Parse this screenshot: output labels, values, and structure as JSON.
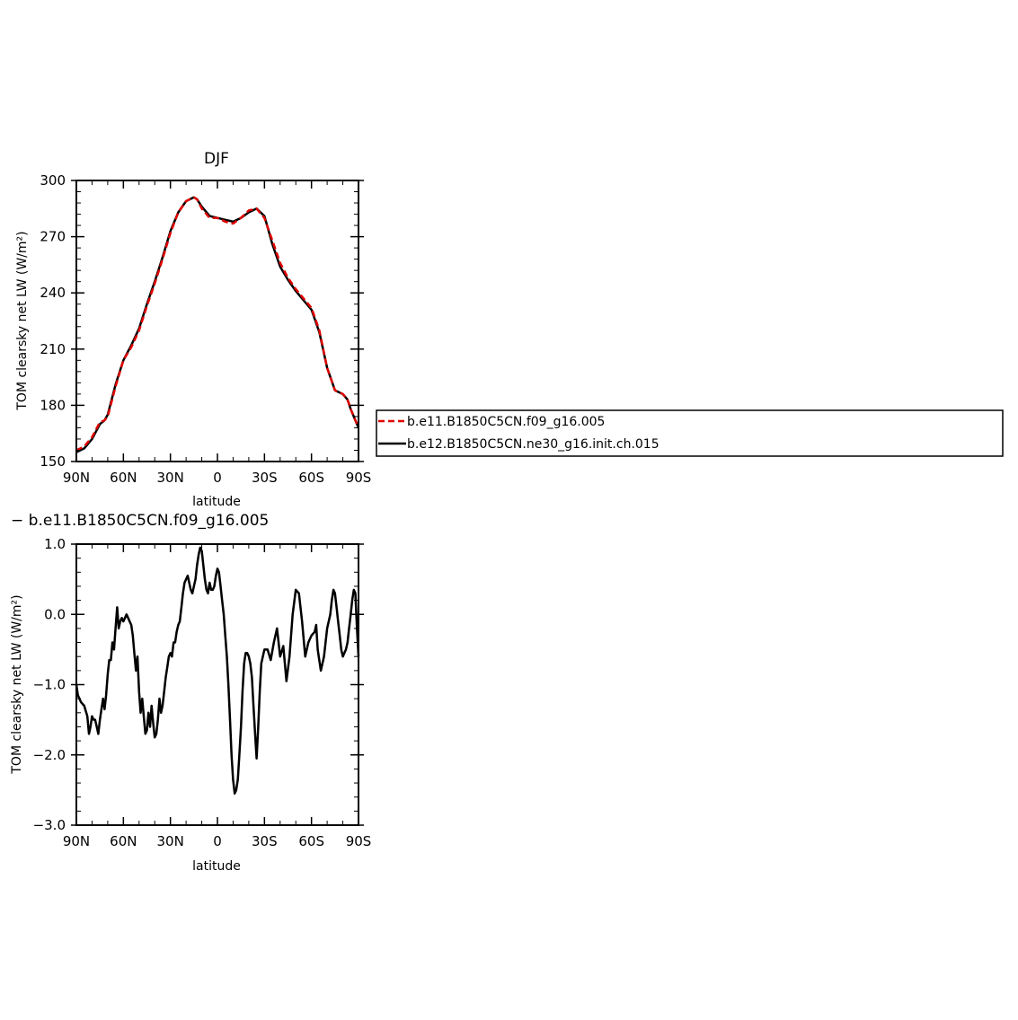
{
  "chart_data": [
    {
      "type": "line",
      "title": "DJF",
      "xlabel": "latitude",
      "ylabel": "TOM clearsky net LW (W/m²)",
      "xlim": [
        90,
        -90
      ],
      "ylim": [
        150,
        300
      ],
      "x_ticks": [
        {
          "value": 90,
          "label": "90N"
        },
        {
          "value": 60,
          "label": "60N"
        },
        {
          "value": 30,
          "label": "30N"
        },
        {
          "value": 0,
          "label": "0"
        },
        {
          "value": -30,
          "label": "30S"
        },
        {
          "value": -60,
          "label": "60S"
        },
        {
          "value": -90,
          "label": "90S"
        }
      ],
      "y_ticks": [
        150,
        180,
        210,
        240,
        270,
        300
      ],
      "y_tick_labels": [
        "150",
        "180",
        "210",
        "240",
        "270",
        "300"
      ],
      "legend": "right",
      "series": [
        {
          "name": "b.e11.B1850C5CN.f09_g16.005",
          "color": "#e00000",
          "dash": true,
          "x": [
            90,
            85,
            80,
            75,
            72,
            70,
            65,
            60,
            55,
            50,
            45,
            40,
            35,
            30,
            25,
            20,
            15,
            13,
            10,
            5,
            0,
            -5,
            -10,
            -15,
            -20,
            -25,
            -30,
            -35,
            -40,
            -45,
            -50,
            -55,
            -60,
            -65,
            -70,
            -75,
            -80,
            -83,
            -85,
            -88,
            -90
          ],
          "y": [
            156,
            158,
            163,
            171,
            172,
            174,
            190,
            204,
            211,
            220,
            233,
            245,
            258,
            272,
            283,
            289,
            291,
            290,
            285,
            280,
            280,
            278,
            277,
            280,
            284,
            285,
            280,
            268,
            256,
            248,
            242,
            237,
            232,
            220,
            200,
            188,
            186,
            183,
            178,
            172,
            168
          ]
        },
        {
          "name": "b.e12.B1850C5CN.ne30_g16.init.ch.015",
          "color": "#000000",
          "dash": false,
          "x": [
            90,
            85,
            80,
            75,
            72,
            70,
            65,
            60,
            55,
            50,
            45,
            40,
            35,
            30,
            25,
            20,
            15,
            13,
            10,
            5,
            0,
            -5,
            -10,
            -15,
            -20,
            -25,
            -30,
            -35,
            -40,
            -45,
            -50,
            -55,
            -60,
            -65,
            -70,
            -75,
            -80,
            -83,
            -85,
            -88,
            -90
          ],
          "y": [
            155,
            157,
            162,
            170,
            172,
            175,
            191,
            204,
            212,
            221,
            234,
            246,
            259,
            273,
            283,
            289,
            291,
            290,
            286,
            281,
            280,
            279,
            278,
            280,
            283,
            285,
            281,
            266,
            254,
            247,
            241,
            236,
            231,
            219,
            200,
            188,
            186,
            183,
            178,
            172,
            168
          ]
        }
      ]
    },
    {
      "type": "line",
      "title": "− b.e11.B1850C5CN.f09_g16.005",
      "xlabel": "latitude",
      "ylabel": "TOM clearsky net LW (W/m²)",
      "xlim": [
        90,
        -90
      ],
      "ylim": [
        -3.0,
        1.0
      ],
      "x_ticks": [
        {
          "value": 90,
          "label": "90N"
        },
        {
          "value": 60,
          "label": "60N"
        },
        {
          "value": 30,
          "label": "30N"
        },
        {
          "value": 0,
          "label": "0"
        },
        {
          "value": -30,
          "label": "30S"
        },
        {
          "value": -60,
          "label": "60S"
        },
        {
          "value": -90,
          "label": "90S"
        }
      ],
      "y_ticks": [
        -3.0,
        -2.0,
        -1.0,
        0.0,
        1.0
      ],
      "y_tick_labels": [
        "−3.0",
        "−2.0",
        "−1.0",
        "0.0",
        "1.0"
      ],
      "series": [
        {
          "color": "#000000",
          "dash": false,
          "x": [
            90,
            89,
            87,
            85,
            83,
            82,
            81,
            80,
            79,
            78,
            77,
            76,
            75,
            74,
            73,
            72,
            71,
            70,
            69,
            68,
            67,
            66,
            65,
            64,
            63,
            62,
            61,
            60,
            59,
            58,
            57,
            56,
            55,
            54,
            53,
            52,
            51,
            50,
            49,
            48,
            47,
            46,
            45,
            44,
            43,
            42,
            41,
            40,
            39,
            38,
            37,
            36,
            35,
            34,
            33,
            32,
            31,
            30,
            29,
            28,
            27,
            26,
            25,
            24,
            23,
            22,
            21,
            20,
            19,
            18,
            17,
            16,
            15,
            14,
            13,
            12,
            11,
            10,
            9,
            8,
            7,
            6,
            5,
            4,
            3,
            2,
            1,
            0,
            -1,
            -2,
            -3,
            -4,
            -5,
            -6,
            -7,
            -8,
            -9,
            -10,
            -11,
            -12,
            -13,
            -14,
            -15,
            -16,
            -17,
            -18,
            -19,
            -20,
            -21,
            -22,
            -23,
            -24,
            -25,
            -26,
            -27,
            -28,
            -30,
            -32,
            -34,
            -36,
            -38,
            -40,
            -42,
            -44,
            -46,
            -48,
            -50,
            -52,
            -54,
            -56,
            -58,
            -60,
            -62,
            -63,
            -64,
            -66,
            -68,
            -70,
            -72,
            -73,
            -74,
            -75,
            -76,
            -77,
            -78,
            -79,
            -80,
            -81,
            -82,
            -83,
            -84,
            -85,
            -86,
            -87,
            -88,
            -89,
            -90
          ],
          "y": [
            -1.0,
            -1.15,
            -1.25,
            -1.3,
            -1.45,
            -1.7,
            -1.6,
            -1.45,
            -1.5,
            -1.5,
            -1.6,
            -1.7,
            -1.5,
            -1.35,
            -1.2,
            -1.35,
            -1.15,
            -0.85,
            -0.65,
            -0.65,
            -0.4,
            -0.5,
            -0.2,
            0.1,
            -0.2,
            -0.1,
            -0.05,
            -0.1,
            -0.05,
            0.0,
            -0.05,
            -0.1,
            -0.15,
            -0.3,
            -0.55,
            -0.8,
            -0.6,
            -1.1,
            -1.4,
            -1.2,
            -1.45,
            -1.7,
            -1.65,
            -1.4,
            -1.6,
            -1.3,
            -1.55,
            -1.75,
            -1.7,
            -1.5,
            -1.2,
            -1.4,
            -1.3,
            -1.1,
            -0.9,
            -0.75,
            -0.6,
            -0.55,
            -0.6,
            -0.4,
            -0.4,
            -0.25,
            -0.15,
            -0.1,
            0.1,
            0.3,
            0.45,
            0.5,
            0.55,
            0.45,
            0.35,
            0.3,
            0.4,
            0.5,
            0.7,
            0.85,
            0.95,
            0.9,
            0.7,
            0.5,
            0.35,
            0.3,
            0.45,
            0.35,
            0.35,
            0.4,
            0.55,
            0.65,
            0.6,
            0.4,
            0.2,
            0.0,
            -0.3,
            -0.6,
            -1.0,
            -1.5,
            -2.0,
            -2.35,
            -2.55,
            -2.5,
            -2.35,
            -2.0,
            -1.6,
            -1.1,
            -0.7,
            -0.55,
            -0.55,
            -0.6,
            -0.7,
            -0.9,
            -1.3,
            -1.7,
            -2.05,
            -1.6,
            -1.1,
            -0.7,
            -0.5,
            -0.5,
            -0.65,
            -0.4,
            -0.2,
            -0.6,
            -0.45,
            -0.95,
            -0.6,
            0.0,
            0.35,
            0.3,
            -0.1,
            -0.6,
            -0.4,
            -0.3,
            -0.25,
            -0.15,
            -0.5,
            -0.8,
            -0.6,
            -0.2,
            0.0,
            0.2,
            0.35,
            0.3,
            0.1,
            -0.1,
            -0.3,
            -0.5,
            -0.6,
            -0.55,
            -0.5,
            -0.4,
            -0.2,
            0.0,
            0.2,
            0.35,
            0.3,
            -0.2,
            -0.6
          ]
        }
      ]
    }
  ]
}
